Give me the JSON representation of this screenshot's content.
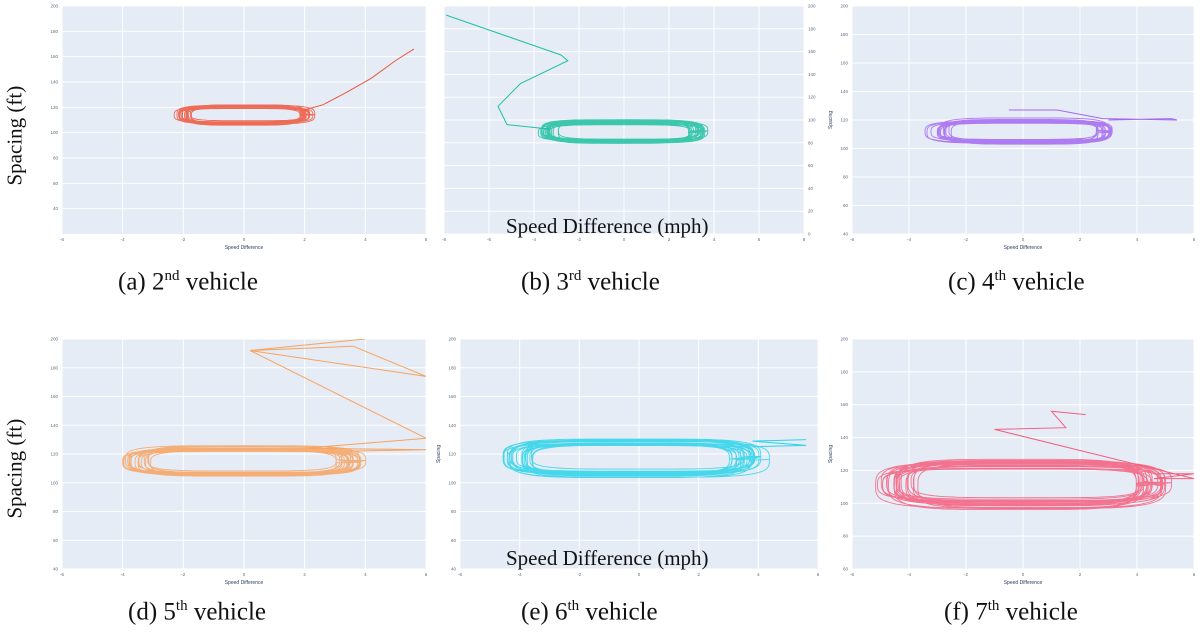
{
  "figure": {
    "ylabel_row1": "Spacing (ft)",
    "ylabel_row2": "Spacing (ft)",
    "xlabel_panel_b": "Speed Difference (mph)",
    "xlabel_panel_e": "Speed Difference (mph)"
  },
  "chart_data": [
    {
      "id": "a",
      "type": "line",
      "color": "#ef553b",
      "caption_prefix": "(a) 2",
      "caption_sup": "nd",
      "caption_suffix": " vehicle",
      "xlabel": "Speed Difference",
      "ylabel": "",
      "xlim": [
        -6,
        6
      ],
      "ylim": [
        20,
        200
      ],
      "xticks": [
        -6,
        -4,
        -2,
        0,
        2,
        4,
        6
      ],
      "yticks": [
        40,
        60,
        80,
        100,
        120,
        140,
        160,
        180,
        200
      ],
      "grid": true,
      "series": [
        {
          "loop": {
            "cx": 0,
            "cy": 114,
            "rx": 2.1,
            "ry": 7,
            "loops": 22
          },
          "tail": [
            [
              2.0,
              118
            ],
            [
              2.6,
              122
            ],
            [
              3.4,
              132
            ],
            [
              4.2,
              143
            ],
            [
              5.0,
              157
            ],
            [
              5.6,
              166
            ]
          ]
        }
      ]
    },
    {
      "id": "b",
      "type": "line",
      "color": "#1fc1a0",
      "caption_prefix": "(b) 3",
      "caption_sup": "rd",
      "caption_suffix": " vehicle",
      "xlabel": "",
      "ylabel": "",
      "xlim": [
        -8,
        8
      ],
      "ylim": [
        0,
        200
      ],
      "xticks": [
        -8,
        -6,
        -4,
        -2,
        0,
        2,
        4,
        6,
        8
      ],
      "yticks": [
        0,
        20,
        40,
        60,
        80,
        100,
        120,
        140,
        160,
        180,
        200
      ],
      "grid": true,
      "series": [
        {
          "loop": {
            "cx": 0,
            "cy": 90,
            "rx": 3.5,
            "ry": 9,
            "loops": 22
          },
          "tail": [
            [
              -3.3,
              92
            ],
            [
              -5.2,
              96
            ],
            [
              -5.6,
              112
            ],
            [
              -4.6,
              132
            ],
            [
              -2.5,
              152
            ],
            [
              -2.8,
              157
            ],
            [
              -7.9,
              192
            ]
          ]
        }
      ]
    },
    {
      "id": "c",
      "type": "line",
      "color": "#a467f0",
      "caption_prefix": "(c) 4",
      "caption_sup": "th",
      "caption_suffix": " vehicle",
      "xlabel": "Speed Difference",
      "ylabel": "Spacing",
      "xlim": [
        -6,
        6
      ],
      "ylim": [
        40,
        200
      ],
      "xticks": [
        -6,
        -4,
        -2,
        0,
        2,
        4,
        6
      ],
      "yticks": [
        40,
        60,
        80,
        100,
        120,
        140,
        160,
        180,
        200
      ],
      "grid": true,
      "series": [
        {
          "loop": {
            "cx": 0,
            "cy": 112,
            "rx": 3.0,
            "ry": 8,
            "loops": 18
          },
          "tail": [
            [
              3.0,
              120
            ],
            [
              5.2,
              121
            ],
            [
              5.4,
              120
            ],
            [
              2.8,
              121
            ],
            [
              1.2,
              127
            ],
            [
              -0.5,
              127
            ]
          ]
        }
      ]
    },
    {
      "id": "d",
      "type": "line",
      "color": "#f7a25e",
      "caption_prefix": "(d) 5",
      "caption_sup": "th",
      "caption_suffix": " vehicle",
      "xlabel": "Speed Difference",
      "ylabel": "",
      "xlim": [
        -6,
        6
      ],
      "ylim": [
        40,
        200
      ],
      "xticks": [
        -6,
        -4,
        -2,
        0,
        2,
        4,
        6
      ],
      "yticks": [
        40,
        60,
        80,
        100,
        120,
        140,
        160,
        180,
        200
      ],
      "grid": true,
      "series": [
        {
          "loop": {
            "cx": 0,
            "cy": 115,
            "rx": 3.6,
            "ry": 9,
            "loops": 20
          },
          "tail": [
            [
              3.5,
              122
            ],
            [
              6.0,
              123
            ],
            [
              2.0,
              124
            ],
            [
              6.0,
              131
            ],
            [
              0.2,
              192
            ],
            [
              3.6,
              195
            ],
            [
              6.0,
              174
            ],
            [
              0.2,
              192
            ],
            [
              4.0,
              200
            ]
          ]
        }
      ]
    },
    {
      "id": "e",
      "type": "line",
      "color": "#2bd3e8",
      "caption_prefix": "(e) 6",
      "caption_sup": "th",
      "caption_suffix": " vehicle",
      "xlabel": "",
      "ylabel": "Spacing",
      "xlim": [
        -6,
        6
      ],
      "ylim": [
        40,
        200
      ],
      "xticks": [
        -6,
        -4,
        -2,
        0,
        2,
        4,
        6
      ],
      "yticks": [
        40,
        60,
        80,
        100,
        120,
        140,
        160,
        180,
        200
      ],
      "grid": true,
      "series": [
        {
          "loop": {
            "cx": -0.2,
            "cy": 117,
            "rx": 4.0,
            "ry": 12,
            "loops": 24
          },
          "tail": [
            [
              3.8,
              125
            ],
            [
              5.6,
              126
            ],
            [
              3.8,
              129
            ],
            [
              5.6,
              130
            ]
          ]
        }
      ]
    },
    {
      "id": "f",
      "type": "line",
      "color": "#f55e7d",
      "caption_prefix": "(f) 7",
      "caption_sup": "th",
      "caption_suffix": " vehicle",
      "xlabel": "Speed Difference",
      "ylabel": "Spacing",
      "xlim": [
        -6,
        6
      ],
      "ylim": [
        60,
        200
      ],
      "xticks": [
        -6,
        -4,
        -2,
        0,
        2,
        4,
        6
      ],
      "yticks": [
        60,
        80,
        100,
        120,
        140,
        160,
        180,
        200
      ],
      "grid": true,
      "series": [
        {
          "loop": {
            "cx": 0,
            "cy": 112,
            "rx": 4.6,
            "ry": 13,
            "loops": 26
          },
          "tail": [
            [
              4.6,
              118
            ],
            [
              6.0,
              118
            ],
            [
              4.6,
              115
            ],
            [
              6.0,
              115
            ],
            [
              -1.0,
              145
            ],
            [
              1.5,
              146
            ],
            [
              1.0,
              156
            ],
            [
              2.2,
              154
            ]
          ]
        }
      ]
    }
  ]
}
